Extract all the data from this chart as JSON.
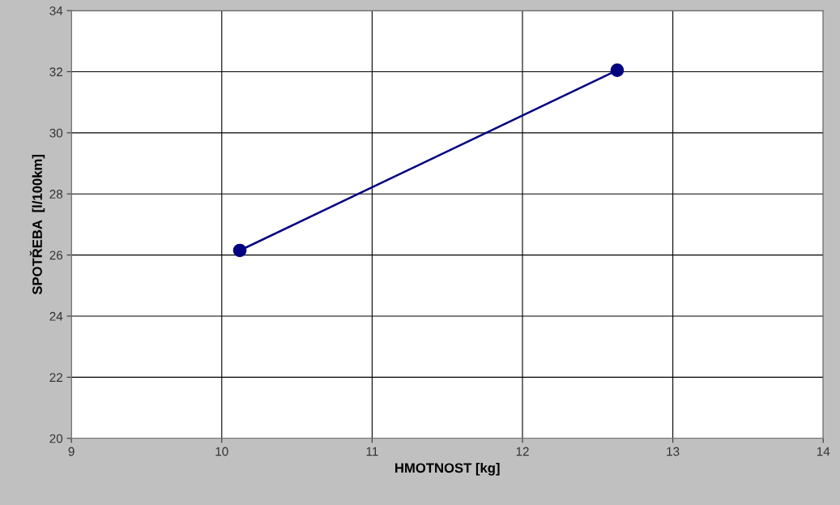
{
  "chart_data": {
    "type": "line",
    "xlabel": "HMOTNOST [kg]",
    "ylabel": "SPOTŘEBA  [l/100km]",
    "x": [
      10.12,
      12.63
    ],
    "series": [
      {
        "color": "#000080",
        "values": [
          26.15,
          32.05
        ]
      }
    ],
    "xlim": [
      9,
      14
    ],
    "xticks": [
      9,
      10,
      11,
      12,
      13,
      14
    ],
    "ylim": [
      20,
      34
    ],
    "yticks": [
      20,
      22,
      24,
      26,
      28,
      30,
      32,
      34
    ],
    "grid": true,
    "marker": "circle",
    "line_style": "solid",
    "legend": false
  }
}
